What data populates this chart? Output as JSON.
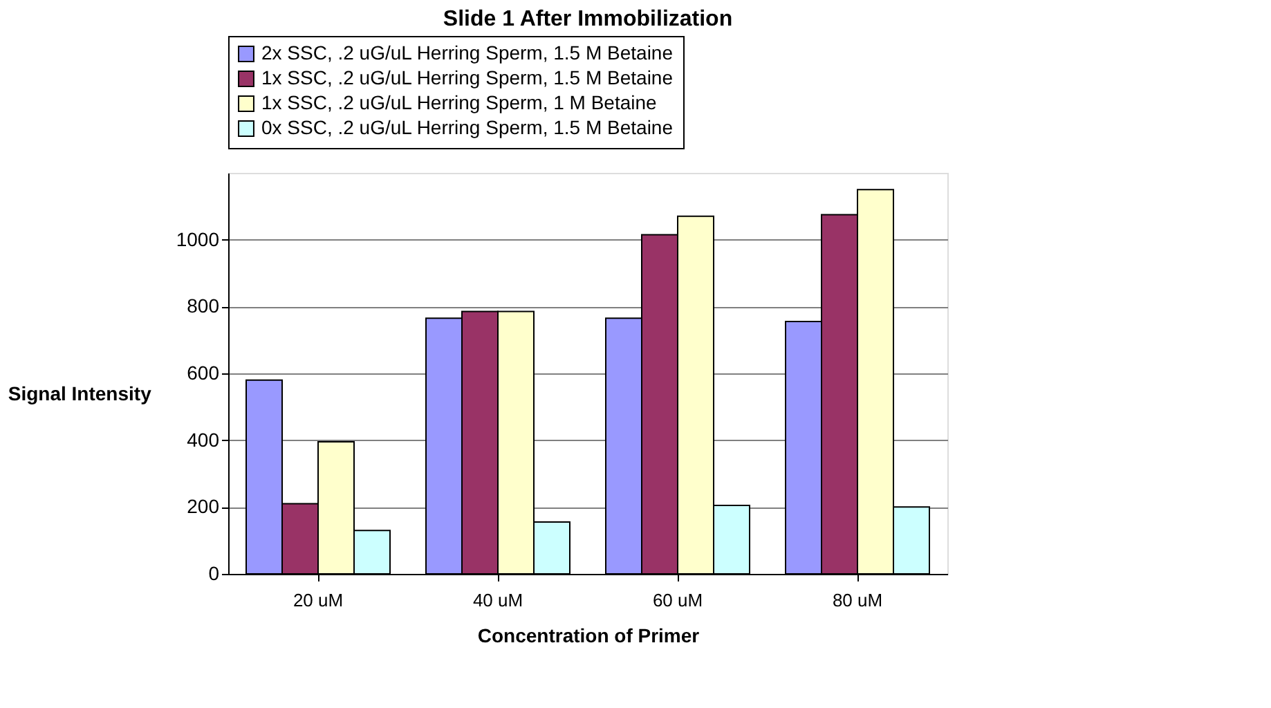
{
  "chart_data": {
    "type": "bar",
    "title": "Slide 1 After Immobilization",
    "xlabel": "Concentration of Primer",
    "ylabel": "Signal Intensity",
    "categories": [
      "20 uM",
      "40 uM",
      "60 uM",
      "80 uM"
    ],
    "series": [
      {
        "name": "2x SSC, .2 uG/uL Herring Sperm, 1.5 M Betaine",
        "color": "#9999ff",
        "values": [
          580,
          765,
          765,
          755
        ]
      },
      {
        "name": "1x SSC, .2 uG/uL Herring Sperm, 1.5 M Betaine",
        "color": "#993366",
        "values": [
          210,
          785,
          1015,
          1075
        ]
      },
      {
        "name": "1x SSC, .2 uG/uL Herring Sperm, 1 M Betaine",
        "color": "#ffffcc",
        "values": [
          395,
          785,
          1070,
          1150
        ]
      },
      {
        "name": "0x SSC, .2 uG/uL Herring Sperm, 1.5 M Betaine",
        "color": "#ccffff",
        "values": [
          130,
          155,
          205,
          200
        ]
      }
    ],
    "ylim": [
      0,
      1200
    ],
    "yticks": [
      0,
      200,
      400,
      600,
      800,
      1000
    ],
    "grid": "y",
    "legend": "top"
  }
}
